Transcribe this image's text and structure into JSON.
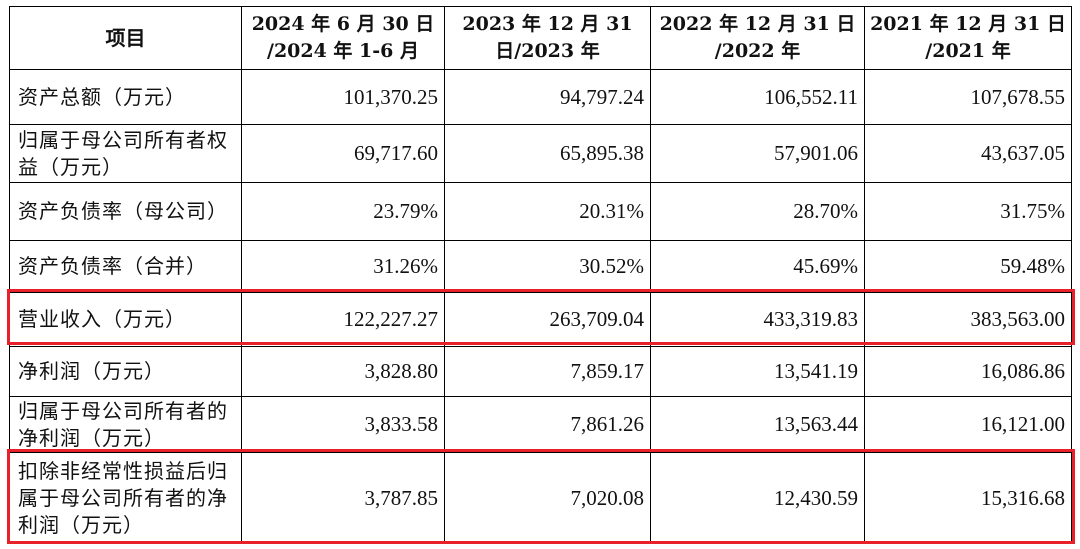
{
  "table": {
    "headers": {
      "item": "项目",
      "periods": [
        {
          "line1": "2024 年 6 月 30 日",
          "line2": "/2024 年 1-6 月"
        },
        {
          "line1": "2023 年 12 月 31",
          "line2": "日/2023 年"
        },
        {
          "line1": "2022 年 12 月 31 日",
          "line2": "/2022 年"
        },
        {
          "line1": "2021 年 12 月 31 日",
          "line2": "/2021 年"
        }
      ]
    },
    "rows": [
      {
        "label": "资产总额（万元）",
        "values": [
          "101,370.25",
          "94,797.24",
          "106,552.11",
          "107,678.55"
        ]
      },
      {
        "label": "归属于母公司所有者权益（万元）",
        "values": [
          "69,717.60",
          "65,895.38",
          "57,901.06",
          "43,637.05"
        ]
      },
      {
        "label": "资产负债率（母公司）",
        "values": [
          "23.79%",
          "20.31%",
          "28.70%",
          "31.75%"
        ]
      },
      {
        "label": "资产负债率（合并）",
        "values": [
          "31.26%",
          "30.52%",
          "45.69%",
          "59.48%"
        ]
      },
      {
        "label": "营业收入（万元）",
        "values": [
          "122,227.27",
          "263,709.04",
          "433,319.83",
          "383,563.00"
        ]
      },
      {
        "label": "净利润（万元）",
        "values": [
          "3,828.80",
          "7,859.17",
          "13,541.19",
          "16,086.86"
        ]
      },
      {
        "label": "归属于母公司所有者的净利润（万元）",
        "values": [
          "3,833.58",
          "7,861.26",
          "13,563.44",
          "16,121.00"
        ]
      },
      {
        "label": "扣除非经常性损益后归属于母公司所有者的净利润（万元）",
        "values": [
          "3,787.85",
          "7,020.08",
          "12,430.59",
          "15,316.68"
        ]
      }
    ]
  },
  "highlights": {
    "color": "#e8202a",
    "rows": [
      "营业收入（万元）",
      "扣除非经常性损益后归属于母公司所有者的净利润（万元）"
    ]
  }
}
